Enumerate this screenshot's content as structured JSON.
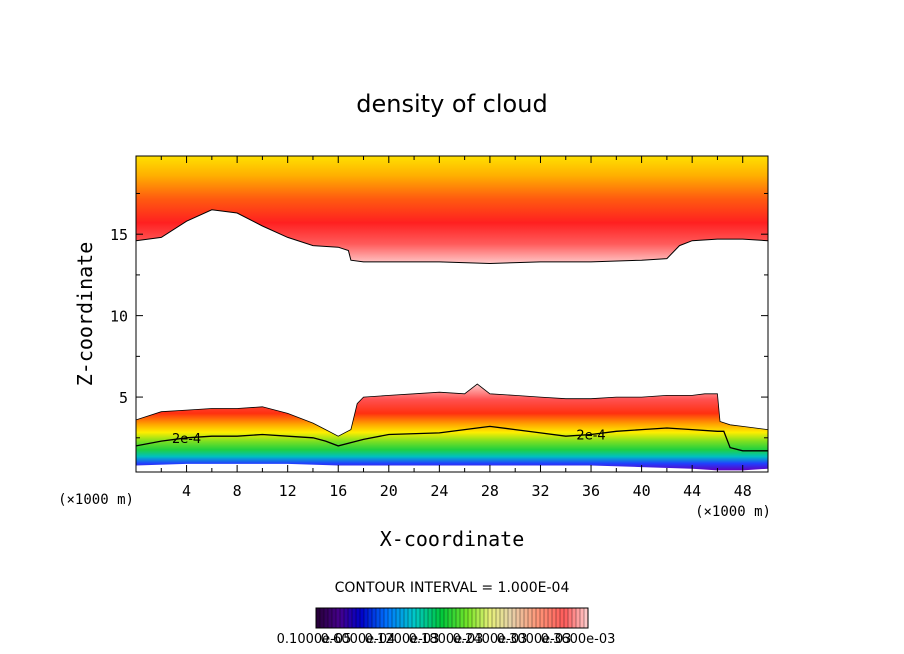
{
  "chart_data": {
    "type": "contour",
    "title": "density of cloud",
    "xlabel": "X-coordinate",
    "ylabel": "Z-coordinate",
    "x_unit": "(×1000 m)",
    "z_unit": "(×1000 m)",
    "xlim": [
      0,
      50
    ],
    "ylim": [
      0.4,
      19.8
    ],
    "x_ticks": [
      4,
      8,
      12,
      16,
      20,
      24,
      28,
      32,
      36,
      40,
      44,
      48
    ],
    "y_ticks": [
      5,
      10,
      15
    ],
    "contour_interval_text": "CONTOUR INTERVAL = 1.000E-04",
    "contour_labels": [
      {
        "text": "2e-4",
        "x": 4.0,
        "z": 2.5
      },
      {
        "text": "2e-4",
        "x": 36.0,
        "z": 2.7
      }
    ],
    "colorbar_labels": [
      "0.1000e-05",
      "0.6000e-04",
      "0.1200e-03",
      "0.1800e-03",
      "0.2400e-03",
      "0.3000e-03",
      "0.3600e-03"
    ],
    "upper_layer_base": {
      "x": [
        0,
        2,
        4,
        6,
        8,
        10,
        12,
        14,
        16,
        16.8,
        17,
        18,
        20,
        24,
        28,
        32,
        36,
        40,
        42,
        43,
        44,
        46,
        48,
        50
      ],
      "z": [
        14.6,
        14.8,
        15.8,
        16.5,
        16.3,
        15.5,
        14.8,
        14.3,
        14.2,
        14.0,
        13.4,
        13.3,
        13.3,
        13.3,
        13.2,
        13.3,
        13.3,
        13.4,
        13.5,
        14.3,
        14.6,
        14.7,
        14.7,
        14.6
      ]
    },
    "lower_layer_top": {
      "x": [
        0,
        2,
        4,
        6,
        8,
        10,
        12,
        14,
        15,
        16,
        17,
        17.5,
        18,
        20,
        22,
        24,
        26,
        27,
        28,
        30,
        32,
        34,
        36,
        38,
        40,
        42,
        44,
        45,
        46,
        46.2,
        47,
        48,
        50
      ],
      "z": [
        3.6,
        4.1,
        4.2,
        4.3,
        4.3,
        4.4,
        4.0,
        3.4,
        3.0,
        2.6,
        3.0,
        4.6,
        5.0,
        5.1,
        5.2,
        5.3,
        5.2,
        5.8,
        5.2,
        5.1,
        5.0,
        4.9,
        4.9,
        5.0,
        5.0,
        5.1,
        5.1,
        5.2,
        5.2,
        3.5,
        3.3,
        3.2,
        3.0
      ]
    },
    "contour_2e4": {
      "x": [
        0,
        2,
        4,
        6,
        8,
        10,
        12,
        14,
        15,
        16,
        18,
        20,
        24,
        26,
        28,
        30,
        32,
        34,
        36,
        38,
        40,
        42,
        44,
        46,
        46.5,
        47,
        48,
        50
      ],
      "z": [
        2.0,
        2.3,
        2.5,
        2.6,
        2.6,
        2.7,
        2.6,
        2.5,
        2.3,
        2.0,
        2.4,
        2.7,
        2.8,
        3.0,
        3.2,
        3.0,
        2.8,
        2.6,
        2.7,
        2.9,
        3.0,
        3.1,
        3.0,
        2.9,
        2.9,
        1.9,
        1.7,
        1.7
      ]
    },
    "cloud_base": {
      "x": [
        0,
        4,
        8,
        12,
        16,
        20,
        24,
        28,
        32,
        36,
        40,
        44,
        46,
        48,
        50
      ],
      "z": [
        0.8,
        0.9,
        0.9,
        0.9,
        0.8,
        0.8,
        0.8,
        0.8,
        0.8,
        0.8,
        0.7,
        0.6,
        0.5,
        0.5,
        0.6
      ]
    }
  }
}
